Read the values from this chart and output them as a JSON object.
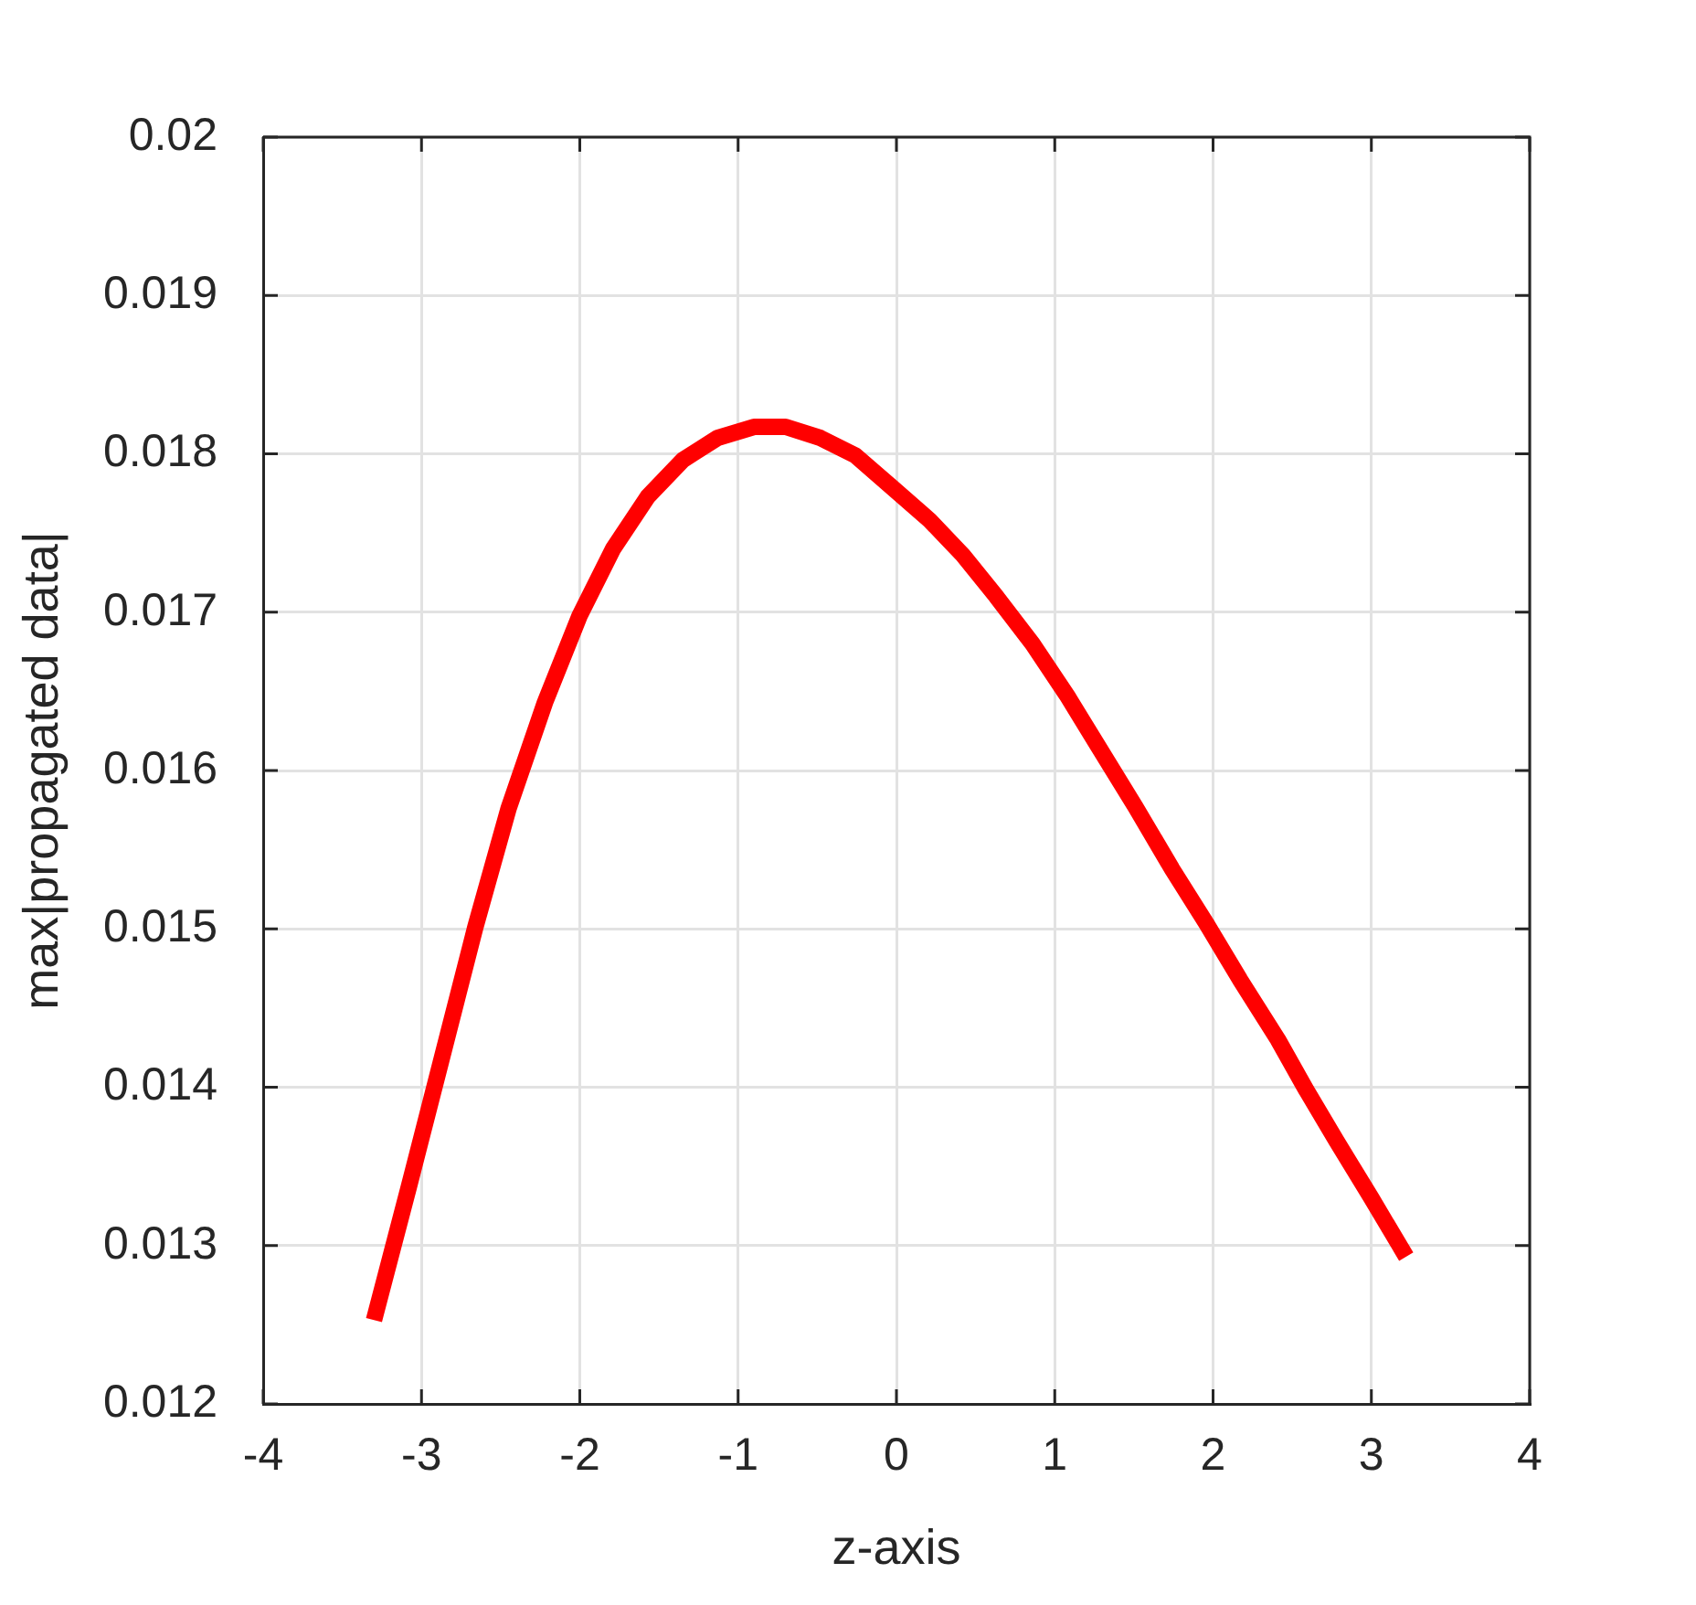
{
  "chart_data": {
    "type": "line",
    "xlabel": "z-axis",
    "ylabel": "max|propagated data|",
    "x": [
      -3.3,
      -3.08,
      -2.88,
      -2.66,
      -2.45,
      -2.22,
      -2.0,
      -1.79,
      -1.57,
      -1.35,
      -1.13,
      -0.9,
      -0.7,
      -0.48,
      -0.26,
      -0.03,
      0.21,
      0.42,
      0.63,
      0.86,
      1.08,
      1.27,
      1.51,
      1.74,
      1.96,
      2.17,
      2.41,
      2.59,
      2.78,
      3.0,
      3.22
    ],
    "series": [
      {
        "color": "#ff0000",
        "values": [
          0.01253,
          0.01337,
          0.01415,
          0.01501,
          0.01576,
          0.01643,
          0.01698,
          0.0174,
          0.01773,
          0.01796,
          0.0181,
          0.01817,
          0.01817,
          0.0181,
          0.01799,
          0.01779,
          0.01758,
          0.01736,
          0.0171,
          0.0168,
          0.01647,
          0.01616,
          0.01577,
          0.01538,
          0.01503,
          0.01468,
          0.0143,
          0.01398,
          0.01366,
          0.0133,
          0.01293
        ]
      }
    ],
    "xlim": [
      -4,
      4
    ],
    "ylim": [
      0.012,
      0.02
    ],
    "xticks": [
      -4,
      -3,
      -2,
      -1,
      0,
      1,
      2,
      3,
      4
    ],
    "yticks": [
      0.012,
      0.013,
      0.014,
      0.015,
      0.016,
      0.017,
      0.018,
      0.019,
      0.02
    ],
    "grid": true,
    "line_style": "solid"
  }
}
